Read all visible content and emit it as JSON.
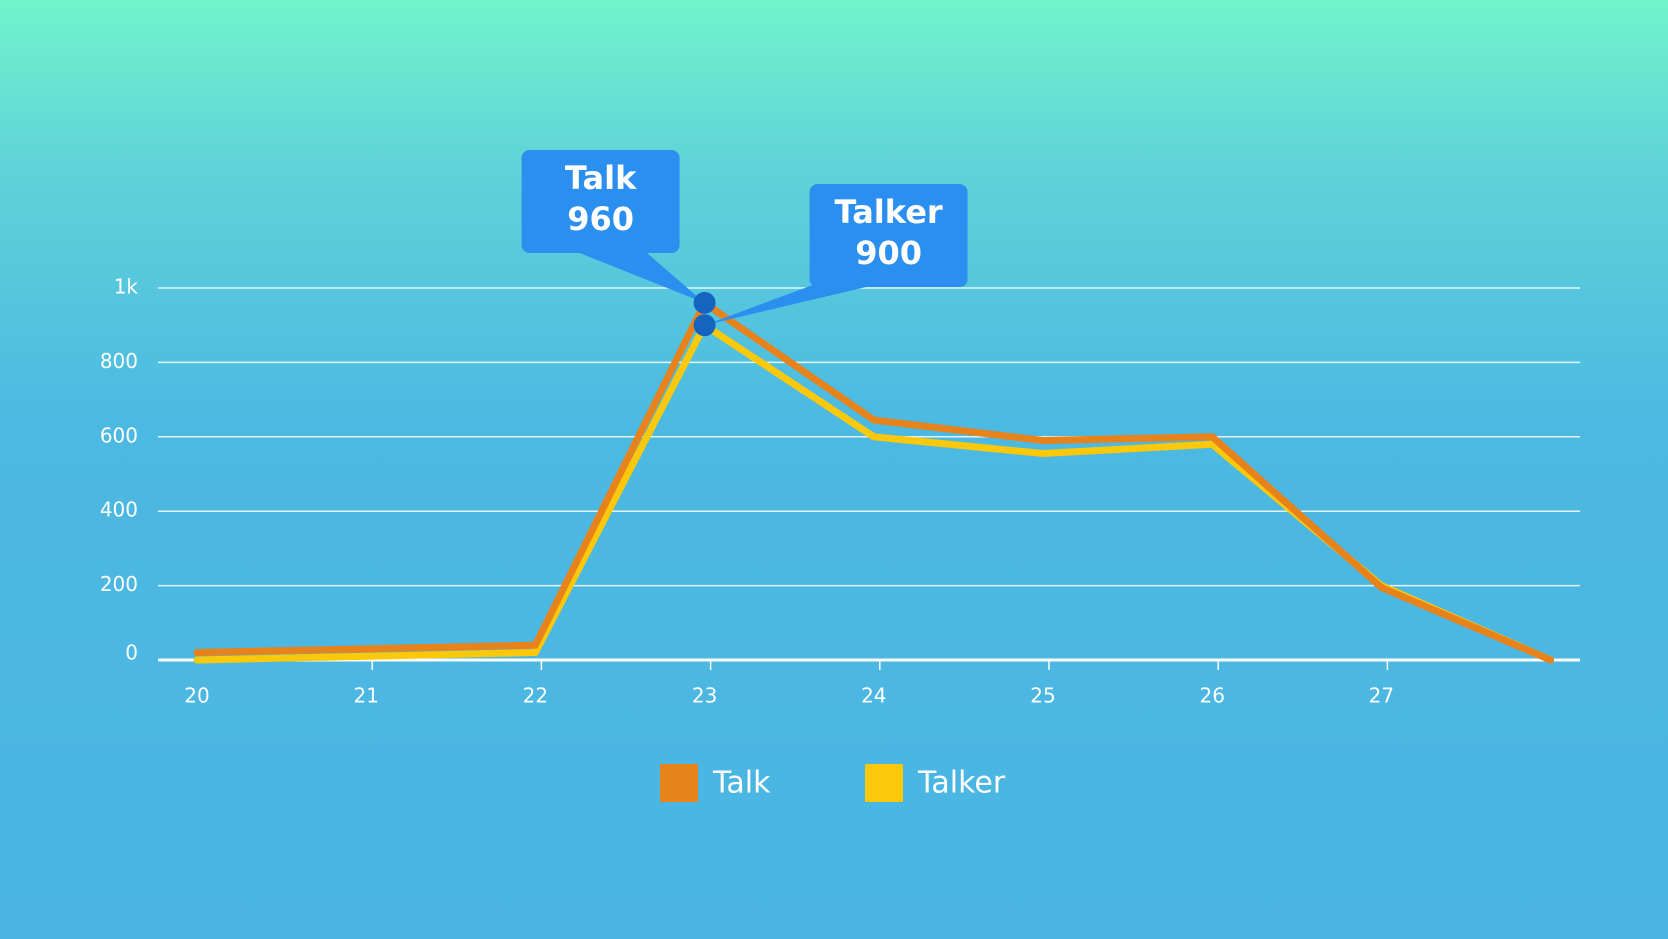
{
  "chart_data": {
    "type": "line",
    "categories": [
      "20",
      "21",
      "22",
      "23",
      "24",
      "25",
      "26",
      "27",
      null
    ],
    "series": [
      {
        "name": "Talk",
        "color": "#e8821a",
        "values": [
          20,
          30,
          40,
          960,
          645,
          590,
          600,
          195,
          0
        ]
      },
      {
        "name": "Talker",
        "color": "#fcc80a",
        "values": [
          0,
          10,
          20,
          900,
          600,
          555,
          580,
          200,
          0
        ]
      }
    ],
    "ylim": [
      0,
      1000
    ],
    "yticks": [
      0,
      200,
      400,
      600,
      800,
      {
        "value": 1000,
        "label": "1k"
      }
    ],
    "grid": true,
    "legend": "bottom"
  }
}
